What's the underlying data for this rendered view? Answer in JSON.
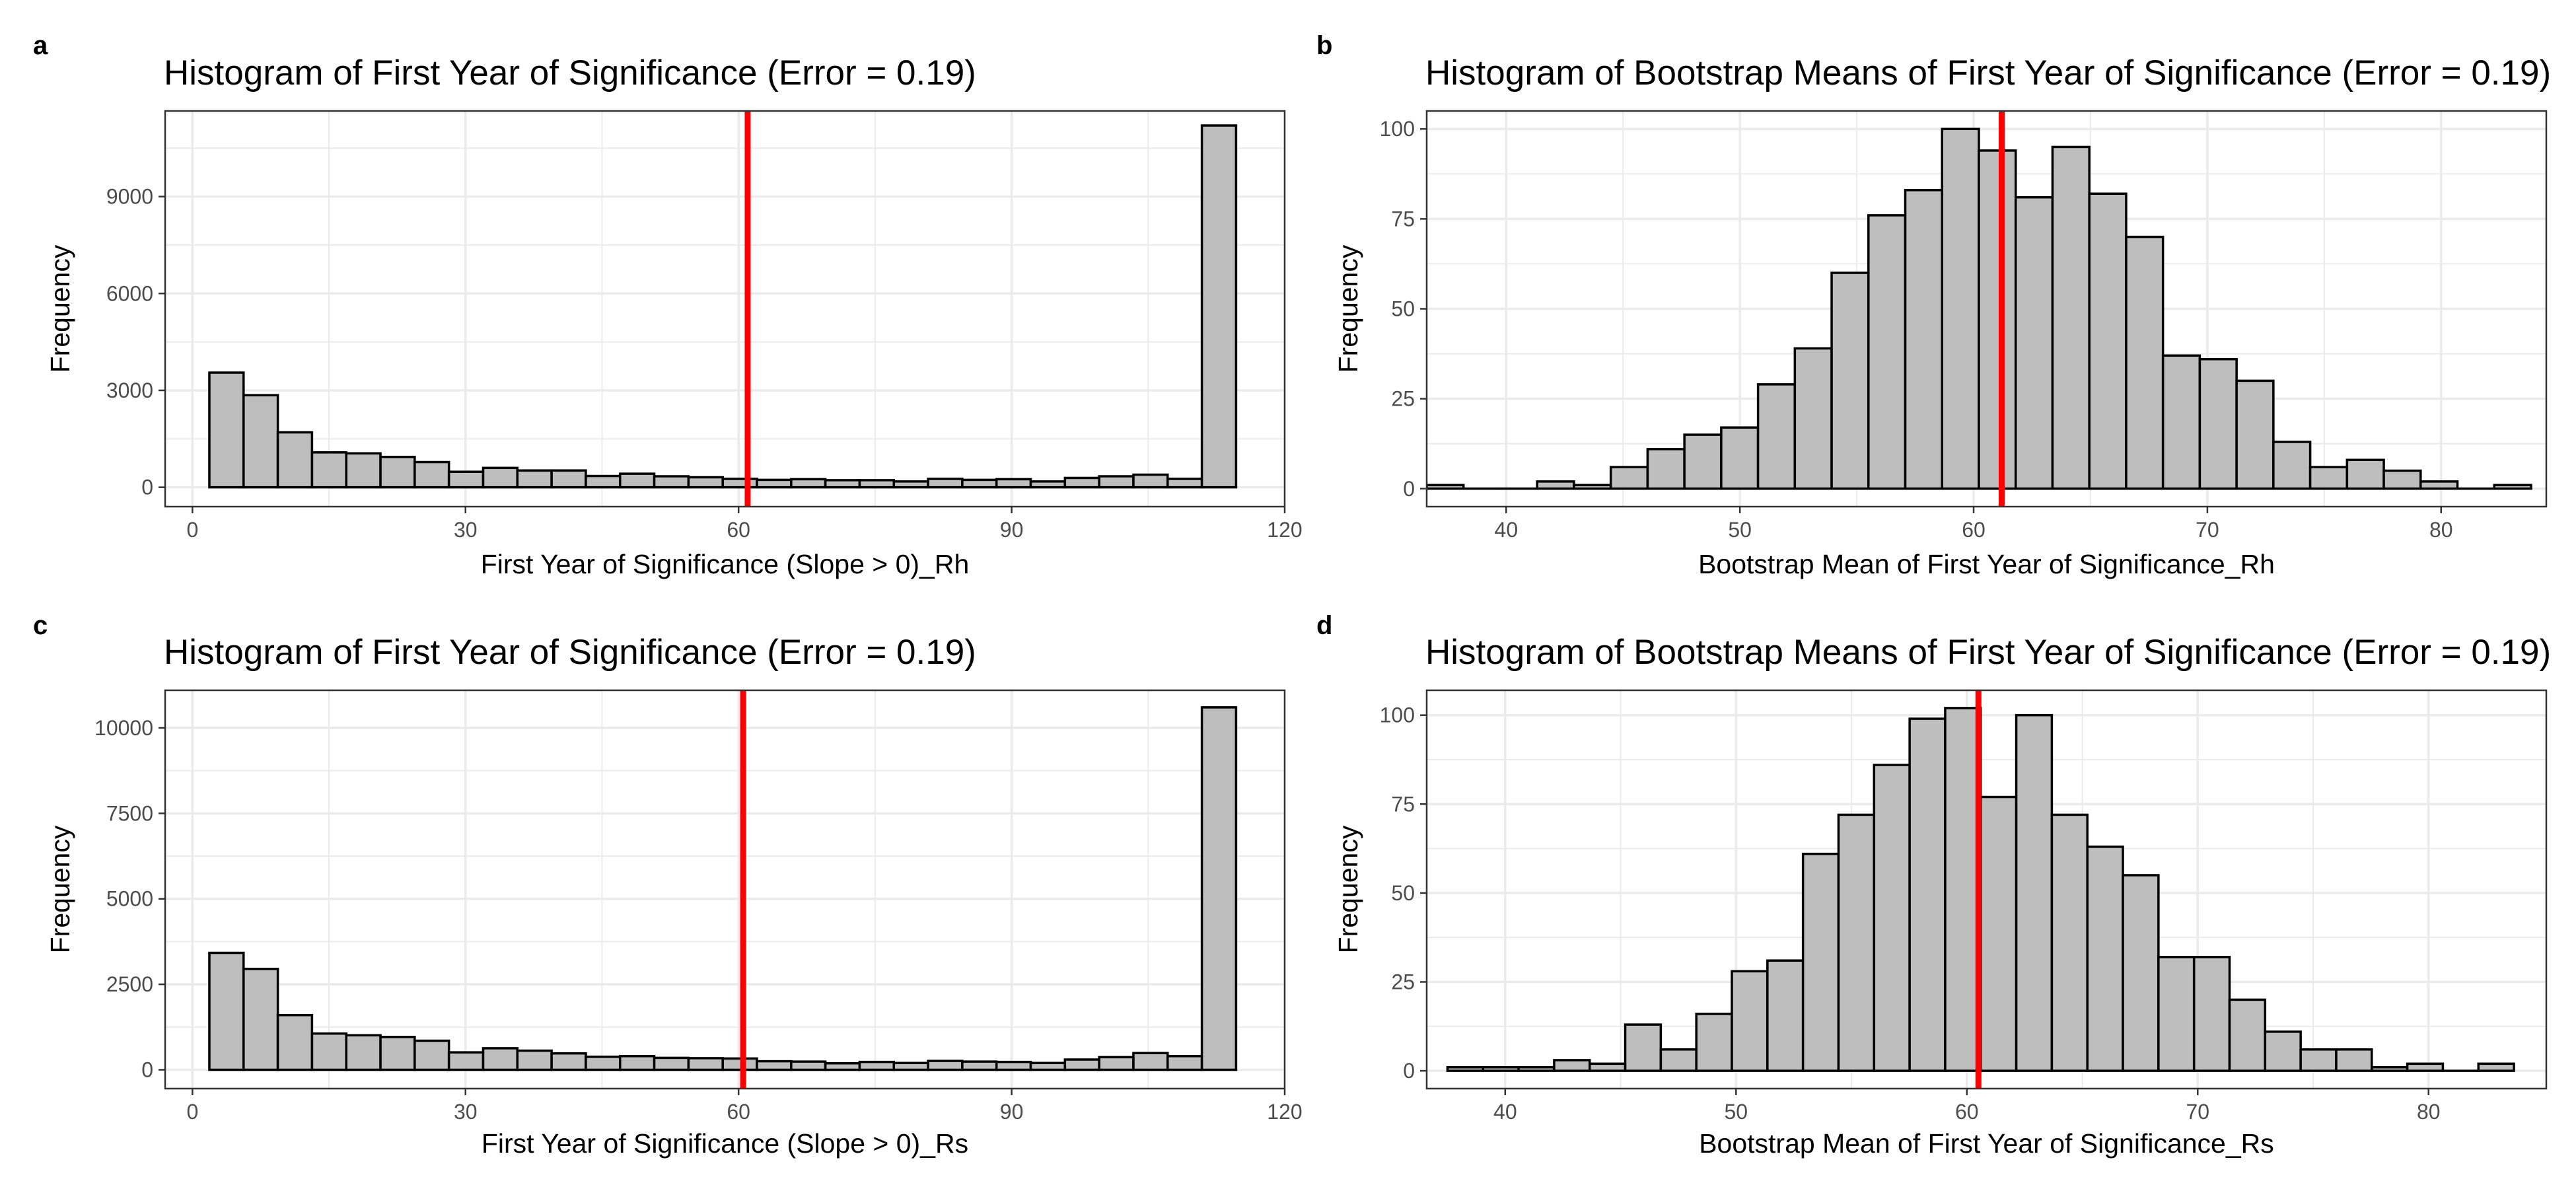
{
  "bar_fill": "#bebebe",
  "bar_stroke": "#000000",
  "vline_color": "#ff0000",
  "grid_color": "#ebebeb",
  "chart_data": [
    {
      "panel": "a",
      "type": "bar",
      "title": "Histogram of First Year of Significance (Error = 0.19)",
      "xlabel": "First Year of Significance (Slope > 0)_Rh",
      "ylabel": "Frequency",
      "xlim": [
        -3,
        120
      ],
      "ylim": [
        -600,
        11650
      ],
      "xticks": [
        0,
        30,
        60,
        90,
        120
      ],
      "xtick_labels": [
        "0",
        "30",
        "60",
        "90",
        "120"
      ],
      "yticks": [
        0,
        3000,
        6000,
        9000
      ],
      "ytick_labels": [
        "0",
        "3000",
        "6000",
        "9000"
      ],
      "bin_start": 1.86,
      "bin_width": 3.76,
      "values": [
        3550,
        2850,
        1700,
        1080,
        1050,
        940,
        780,
        480,
        600,
        520,
        520,
        350,
        420,
        340,
        310,
        260,
        230,
        250,
        220,
        220,
        180,
        260,
        230,
        250,
        180,
        290,
        340,
        390,
        260,
        11200
      ],
      "vline": 61
    },
    {
      "panel": "b",
      "type": "bar",
      "title": "Histogram of Bootstrap Means of First Year of Significance (Error = 0.19)",
      "xlabel": "Bootstrap Mean of First Year of Significance_Rh",
      "ylabel": "Frequency",
      "xlim": [
        36.6,
        84.5
      ],
      "ylim": [
        -5,
        105
      ],
      "xticks": [
        40,
        50,
        60,
        70,
        80
      ],
      "xtick_labels": [
        "40",
        "50",
        "60",
        "70",
        "80"
      ],
      "yticks": [
        0,
        25,
        50,
        75,
        100
      ],
      "ytick_labels": [
        "0",
        "25",
        "50",
        "75",
        "100"
      ],
      "bin_start": 36.6,
      "bin_width": 1.575,
      "values": [
        1,
        0,
        0,
        2,
        1,
        6,
        11,
        15,
        17,
        29,
        39,
        60,
        76,
        83,
        100,
        94,
        81,
        95,
        82,
        70,
        37,
        36,
        30,
        13,
        6,
        8,
        5,
        2,
        0,
        1
      ],
      "vline": 61.2
    },
    {
      "panel": "c",
      "type": "bar",
      "title": "Histogram of First Year of Significance (Error = 0.19)",
      "xlabel": "First Year of Significance (Slope > 0)_Rs",
      "ylabel": "Frequency",
      "xlim": [
        -3,
        120
      ],
      "ylim": [
        -550,
        11100
      ],
      "xticks": [
        0,
        30,
        60,
        90,
        120
      ],
      "xtick_labels": [
        "0",
        "30",
        "60",
        "90",
        "120"
      ],
      "yticks": [
        0,
        2500,
        5000,
        7500,
        10000
      ],
      "ytick_labels": [
        "0",
        "2500",
        "5000",
        "7500",
        "10000"
      ],
      "bin_start": 1.86,
      "bin_width": 3.76,
      "values": [
        3420,
        2950,
        1600,
        1060,
        1010,
        960,
        850,
        510,
        630,
        560,
        480,
        380,
        400,
        350,
        340,
        330,
        250,
        240,
        190,
        230,
        200,
        260,
        240,
        230,
        200,
        300,
        370,
        490,
        400,
        10600
      ],
      "vline": 60.5
    },
    {
      "panel": "d",
      "type": "bar",
      "title": "Histogram of Bootstrap Means of First Year of Significance (Error = 0.19)",
      "xlabel": "Bootstrap Mean of First Year of Significance_Rs",
      "ylabel": "Frequency",
      "xlim": [
        36.6,
        85.1
      ],
      "ylim": [
        -5,
        107
      ],
      "xticks": [
        40,
        50,
        60,
        70,
        80
      ],
      "xtick_labels": [
        "40",
        "50",
        "60",
        "70",
        "80"
      ],
      "yticks": [
        0,
        25,
        50,
        75,
        100
      ],
      "ytick_labels": [
        "0",
        "25",
        "50",
        "75",
        "100"
      ],
      "bin_start": 37.5,
      "bin_width": 1.54,
      "values": [
        1,
        1,
        1,
        3,
        2,
        13,
        6,
        16,
        28,
        31,
        61,
        72,
        86,
        99,
        102,
        77,
        100,
        72,
        63,
        55,
        32,
        32,
        20,
        11,
        6,
        6,
        1,
        2,
        0,
        2
      ],
      "vline": 60.5
    }
  ]
}
